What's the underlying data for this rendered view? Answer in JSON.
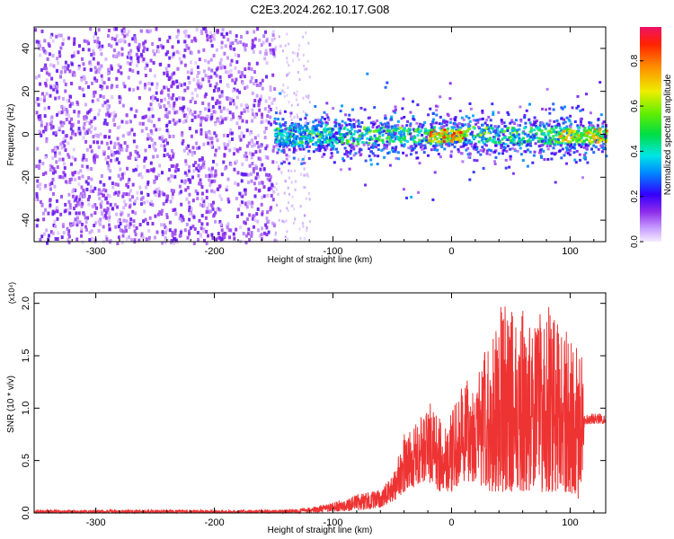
{
  "title": "C2E3.2024.262.10.17.G08",
  "colors": {
    "snr_line": "#ee3333",
    "spec_bg_points": "#8a2be2",
    "spec_axis": "#000000"
  },
  "chart_data": [
    {
      "type": "heatmap",
      "title": "C2E3.2024.262.10.17.G08",
      "xlabel": "Height of straight line (km)",
      "ylabel": "Frequency (Hz)",
      "xlim": [
        -352,
        130
      ],
      "ylim": [
        -50,
        50
      ],
      "x_ticks": [
        -300,
        -200,
        -100,
        0,
        100
      ],
      "y_ticks": [
        -40,
        -20,
        0,
        20,
        40
      ],
      "x_tick_labels": [
        "-300",
        "-200",
        "-100",
        "0",
        "100"
      ],
      "y_tick_labels": [
        "-40",
        "-20",
        "0",
        "20",
        "40"
      ],
      "colorbar": {
        "label": "Normalized spectral amplitude",
        "range": [
          0.0,
          0.95
        ],
        "ticks": [
          0.0,
          0.2,
          0.4,
          0.6,
          0.8
        ],
        "tick_labels": [
          "0.0",
          "0.2",
          "0.4",
          "0.6",
          "0.8"
        ]
      },
      "regions": [
        {
          "x_range": [
            -352,
            -150
          ],
          "freq_range": [
            -50,
            50
          ],
          "amplitude": 0.1,
          "description": "broadband noise"
        },
        {
          "x_range": [
            -150,
            130
          ],
          "freq_center": 0,
          "freq_halfwidth": 8,
          "amplitude": 0.3
        },
        {
          "x_range": [
            -150,
            -100
          ],
          "freq_center": 0,
          "freq_halfwidth": 5,
          "amplitude": 0.45
        },
        {
          "x_range": [
            -20,
            10
          ],
          "freq_center": 0,
          "freq_halfwidth": 3,
          "amplitude": 0.9
        },
        {
          "x_range": [
            90,
            130
          ],
          "freq_center": 0,
          "freq_halfwidth": 3,
          "amplitude": 0.8
        }
      ]
    },
    {
      "type": "line",
      "xlabel": "Height of straight line (km)",
      "ylabel": "SNR (10 * v/v)",
      "y_multiplier_label": "(x10⁴)",
      "xlim": [
        -352,
        130
      ],
      "ylim": [
        0.0,
        2.1
      ],
      "x_ticks": [
        -300,
        -200,
        -100,
        0,
        100
      ],
      "y_ticks": [
        0.0,
        0.5,
        1.0,
        1.5,
        2.0
      ],
      "x_tick_labels": [
        "-300",
        "-200",
        "-100",
        "0",
        "100"
      ],
      "y_tick_labels": [
        "0.0",
        "0.5",
        "1.0",
        "1.5",
        "2.0"
      ],
      "envelope": {
        "x": [
          -352,
          -250,
          -150,
          -120,
          -100,
          -80,
          -60,
          -50,
          -40,
          -30,
          -20,
          -10,
          0,
          10,
          20,
          30,
          40,
          50,
          60,
          70,
          80,
          90,
          100,
          110,
          112,
          120,
          130
        ],
        "y_low": [
          0.0,
          0.0,
          0.0,
          0.0,
          0.01,
          0.02,
          0.05,
          0.1,
          0.2,
          0.25,
          0.3,
          0.2,
          0.2,
          0.3,
          0.3,
          0.2,
          0.2,
          0.2,
          0.2,
          0.2,
          0.2,
          0.2,
          0.2,
          0.1,
          0.85,
          0.85,
          0.85
        ],
        "y_high": [
          0.03,
          0.03,
          0.03,
          0.05,
          0.1,
          0.18,
          0.22,
          0.35,
          0.75,
          0.85,
          1.1,
          0.9,
          0.95,
          1.25,
          1.3,
          1.6,
          2.0,
          1.95,
          1.95,
          1.8,
          2.05,
          1.8,
          1.7,
          1.5,
          0.95,
          0.95,
          0.95
        ]
      }
    }
  ]
}
